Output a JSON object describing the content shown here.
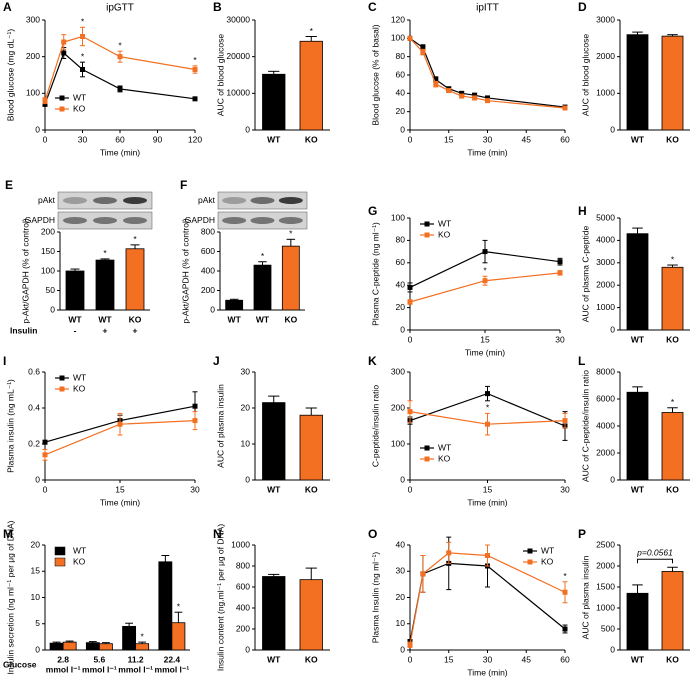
{
  "chart_data": [
    {
      "type": "line",
      "panel": "A",
      "title": "ipGTT",
      "ylabel": "Blood glucose (mg dL⁻¹)",
      "xlabel": "Time (min)",
      "x": [
        0,
        15,
        30,
        60,
        120
      ],
      "xlim": [
        0,
        120
      ],
      "xticks": [
        0,
        30,
        60,
        90,
        120
      ],
      "ylim": [
        0,
        300
      ],
      "yticks": [
        0,
        100,
        200,
        300
      ],
      "legend": "lower-left",
      "series": [
        {
          "name": "WT",
          "color": "#000000",
          "values": [
            70,
            210,
            165,
            112,
            85
          ],
          "errors": [
            5,
            15,
            20,
            8,
            4
          ],
          "annotations": [
            null,
            "*",
            "*",
            null,
            null
          ]
        },
        {
          "name": "KO",
          "color": "#f36f21",
          "values": [
            80,
            240,
            255,
            200,
            165
          ],
          "errors": [
            8,
            20,
            25,
            15,
            10
          ],
          "annotations": [
            null,
            null,
            "*",
            "*",
            "*"
          ]
        }
      ]
    },
    {
      "type": "bar",
      "panel": "B",
      "ylabel": "AUC of blood glucose",
      "categories": [
        "WT",
        "KO"
      ],
      "values": [
        15200,
        24200
      ],
      "errors": [
        800,
        1300
      ],
      "colors": [
        "#000000",
        "#f36f21"
      ],
      "annotations": [
        null,
        "*"
      ],
      "ylim": [
        0,
        30000
      ],
      "yticks": [
        0,
        10000,
        20000,
        30000
      ]
    },
    {
      "type": "line",
      "panel": "C",
      "title": "ipITT",
      "ylabel": "Blood glucose (% of basal)",
      "xlabel": "Time (min)",
      "x": [
        0,
        5,
        10,
        15,
        20,
        25,
        30,
        60
      ],
      "xlim": [
        0,
        60
      ],
      "xticks": [
        0,
        15,
        30,
        45,
        60
      ],
      "ylim": [
        0,
        120
      ],
      "yticks": [
        0,
        20,
        40,
        60,
        80,
        100,
        120
      ],
      "series": [
        {
          "name": "WT",
          "color": "#000000",
          "values": [
            100,
            90,
            55,
            45,
            40,
            38,
            35,
            25
          ],
          "errors": [
            2,
            3,
            3,
            2,
            2,
            2,
            2,
            1
          ]
        },
        {
          "name": "KO",
          "color": "#f36f21",
          "values": [
            100,
            85,
            50,
            43,
            37,
            35,
            32,
            24
          ],
          "errors": [
            2,
            3,
            3,
            2,
            2,
            2,
            2,
            1
          ]
        }
      ]
    },
    {
      "type": "bar",
      "panel": "D",
      "ylabel": "AUC of blood glucose",
      "categories": [
        "WT",
        "KO"
      ],
      "values": [
        2600,
        2560
      ],
      "errors": [
        70,
        40
      ],
      "colors": [
        "#000000",
        "#f36f21"
      ],
      "ylim": [
        0,
        3000
      ],
      "yticks": [
        0,
        1000,
        2000,
        3000
      ]
    },
    {
      "type": "bar",
      "panel": "E",
      "ylabel": "p-Akt/GAPDH (% of control)",
      "blot_labels": [
        "pAkt",
        "GAPDH"
      ],
      "categories": [
        "WT",
        "WT",
        "KO"
      ],
      "row_label": "Insulin",
      "row_values": [
        "-",
        "+",
        "+"
      ],
      "values": [
        100,
        128,
        157
      ],
      "errors": [
        5,
        3,
        10
      ],
      "colors": [
        "#000000",
        "#000000",
        "#f36f21"
      ],
      "annotations": [
        null,
        "*",
        "*"
      ],
      "ylim": [
        0,
        200
      ],
      "yticks": [
        0,
        50,
        100,
        150,
        200
      ]
    },
    {
      "type": "bar",
      "panel": "F",
      "ylabel": "p-Akt/GAPDH (% of control)",
      "blot_labels": [
        "pAkt",
        "GAPDH"
      ],
      "categories": [
        "WT",
        "WT",
        "KO"
      ],
      "values": [
        100,
        460,
        655
      ],
      "errors": [
        10,
        35,
        70
      ],
      "colors": [
        "#000000",
        "#000000",
        "#f36f21"
      ],
      "annotations": [
        null,
        "*",
        "*"
      ],
      "ylim": [
        0,
        800
      ],
      "yticks": [
        0,
        200,
        400,
        600,
        800
      ]
    },
    {
      "type": "line",
      "panel": "G",
      "ylabel": "Plasma C-peptide (ng ml⁻¹)",
      "xlabel": "Time (min)",
      "x": [
        0,
        15,
        30
      ],
      "xlim": [
        0,
        30
      ],
      "xticks": [
        0,
        15,
        30
      ],
      "ylim": [
        0,
        100
      ],
      "yticks": [
        0,
        20,
        40,
        60,
        80,
        100
      ],
      "legend": "upper-left",
      "series": [
        {
          "name": "WT",
          "color": "#000000",
          "values": [
            38,
            70,
            61
          ],
          "errors": [
            4,
            10,
            3
          ]
        },
        {
          "name": "KO",
          "color": "#f36f21",
          "values": [
            25,
            44,
            51
          ],
          "errors": [
            2,
            4,
            2
          ],
          "annotations": [
            null,
            "*",
            null
          ]
        }
      ]
    },
    {
      "type": "bar",
      "panel": "H",
      "ylabel": "AUC of plasma C-peptide",
      "categories": [
        "WT",
        "KO"
      ],
      "values": [
        4300,
        2800
      ],
      "errors": [
        250,
        100
      ],
      "colors": [
        "#000000",
        "#f36f21"
      ],
      "annotations": [
        null,
        "*"
      ],
      "ylim": [
        0,
        5000
      ],
      "yticks": [
        0,
        1000,
        2000,
        3000,
        4000,
        5000
      ]
    },
    {
      "type": "line",
      "panel": "I",
      "ylabel": "Plasma insulin (ng mL⁻¹)",
      "xlabel": "Time (min)",
      "x": [
        0,
        15,
        30
      ],
      "xlim": [
        0,
        30
      ],
      "xticks": [
        0,
        15,
        30
      ],
      "ylim": [
        0,
        0.6
      ],
      "yticks": [
        0,
        0.2,
        0.4,
        0.6
      ],
      "legend": "upper-left",
      "series": [
        {
          "name": "WT",
          "color": "#000000",
          "values": [
            0.21,
            0.33,
            0.41
          ],
          "errors": [
            0.01,
            0.03,
            0.08
          ]
        },
        {
          "name": "KO",
          "color": "#f36f21",
          "values": [
            0.14,
            0.31,
            0.33
          ],
          "errors": [
            0.03,
            0.06,
            0.05
          ],
          "annotations": [
            "*",
            null,
            null
          ]
        }
      ]
    },
    {
      "type": "bar",
      "panel": "J",
      "ylabel": "AUC of plasma insulin",
      "categories": [
        "WT",
        "KO"
      ],
      "values": [
        21.5,
        18
      ],
      "errors": [
        1.8,
        2
      ],
      "colors": [
        "#000000",
        "#f36f21"
      ],
      "ylim": [
        0,
        30
      ],
      "yticks": [
        0,
        10,
        20,
        30
      ]
    },
    {
      "type": "line",
      "panel": "K",
      "ylabel": "C-peptide/insulin ratio",
      "xlabel": "Time (min)",
      "x": [
        0,
        15,
        30
      ],
      "xlim": [
        0,
        30
      ],
      "xticks": [
        0,
        15,
        30
      ],
      "ylim": [
        0,
        300
      ],
      "yticks": [
        0,
        100,
        200,
        300
      ],
      "legend": "lower-left",
      "series": [
        {
          "name": "WT",
          "color": "#000000",
          "values": [
            165,
            240,
            150
          ],
          "errors": [
            10,
            20,
            40
          ]
        },
        {
          "name": "KO",
          "color": "#f36f21",
          "values": [
            190,
            155,
            165
          ],
          "errors": [
            30,
            30,
            20
          ],
          "annotations": [
            null,
            "*",
            null
          ]
        }
      ]
    },
    {
      "type": "bar",
      "panel": "L",
      "ylabel": "AUC of C-peptide/insulin ratio",
      "categories": [
        "WT",
        "KO"
      ],
      "values": [
        6500,
        5000
      ],
      "errors": [
        400,
        350
      ],
      "colors": [
        "#000000",
        "#f36f21"
      ],
      "annotations": [
        null,
        "*"
      ],
      "ylim": [
        0,
        8000
      ],
      "yticks": [
        0,
        2000,
        4000,
        6000,
        8000
      ]
    },
    {
      "type": "grouped_bar",
      "panel": "M",
      "ylabel": "Insulin secretion (ng ml⁻¹ per μg of DNA)",
      "xlabel": "Glucose",
      "categories": [
        "2.8",
        "5.6",
        "11.2",
        "22.4"
      ],
      "category_unit": "mmol l⁻¹",
      "ylim": [
        0,
        20
      ],
      "yticks": [
        0,
        5,
        10,
        15,
        20
      ],
      "legend": "upper-left",
      "series": [
        {
          "name": "WT",
          "color": "#000000",
          "values": [
            1.3,
            1.4,
            4.5,
            16.8
          ],
          "errors": [
            0.2,
            0.2,
            0.6,
            1.2
          ]
        },
        {
          "name": "KO",
          "color": "#f36f21",
          "values": [
            1.5,
            1.2,
            1.2,
            5.2
          ],
          "errors": [
            0.2,
            0.2,
            0.3,
            2
          ],
          "annotations": [
            null,
            null,
            "*",
            "*"
          ]
        }
      ]
    },
    {
      "type": "bar",
      "panel": "N",
      "ylabel": "Insulin content (ng.ml⁻¹ per μg of DNA)",
      "categories": [
        "WT",
        "KO"
      ],
      "values": [
        700,
        670
      ],
      "errors": [
        20,
        110
      ],
      "colors": [
        "#000000",
        "#f36f21"
      ],
      "ylim": [
        0,
        1000
      ],
      "yticks": [
        0,
        200,
        400,
        600,
        800,
        1000
      ]
    },
    {
      "type": "line",
      "panel": "O",
      "ylabel": "Plasma Insulin (ng ml⁻¹)",
      "xlabel": "Time (min)",
      "x": [
        0,
        5,
        15,
        30,
        60
      ],
      "xlim": [
        0,
        60
      ],
      "xticks": [
        0,
        15,
        30,
        45,
        60
      ],
      "ylim": [
        0,
        40
      ],
      "yticks": [
        0,
        10,
        20,
        30,
        40
      ],
      "legend": "upper-right",
      "series": [
        {
          "name": "WT",
          "color": "#000000",
          "values": [
            3,
            29,
            33,
            32,
            8
          ],
          "errors": [
            1,
            7,
            10,
            8,
            1.5
          ]
        },
        {
          "name": "KO",
          "color": "#f36f21",
          "values": [
            2,
            29,
            37,
            36,
            22
          ],
          "errors": [
            1,
            7,
            4,
            4,
            4
          ],
          "annotations": [
            null,
            null,
            null,
            null,
            "*"
          ]
        }
      ]
    },
    {
      "type": "bar",
      "panel": "P",
      "ylabel": "AUC of plasma insulin",
      "categories": [
        "WT",
        "KO"
      ],
      "values": [
        1350,
        1870
      ],
      "errors": [
        200,
        100
      ],
      "colors": [
        "#000000",
        "#f36f21"
      ],
      "bracket_label": "p=0.0561",
      "ylim": [
        0,
        2500
      ],
      "yticks": [
        0,
        500,
        1000,
        1500,
        2000,
        2500
      ]
    }
  ]
}
